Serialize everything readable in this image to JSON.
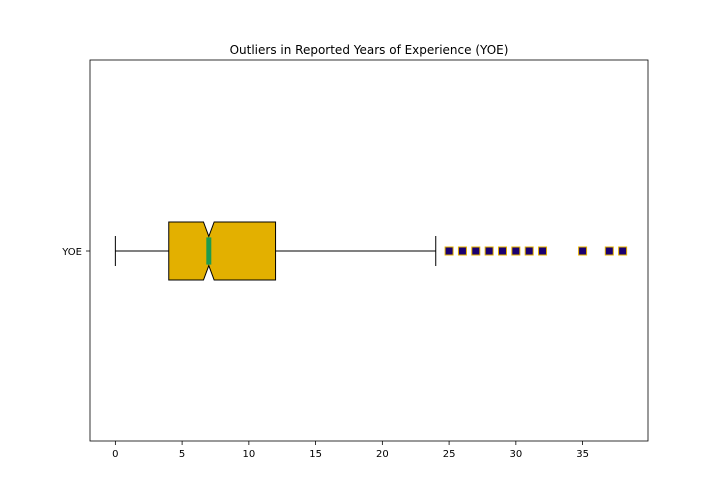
{
  "chart_data": {
    "type": "box",
    "orientation": "horizontal",
    "title": "Outliers in Reported Years of Experience (YOE)",
    "xlabel": "",
    "ylabel": "",
    "xlim": [
      -1.9,
      39.9
    ],
    "x_ticks": [
      0,
      5,
      10,
      15,
      20,
      25,
      30,
      35
    ],
    "grid": false,
    "categories": [
      "YOE"
    ],
    "box": {
      "name": "YOE",
      "whisker_low": 0,
      "q1": 4,
      "median": 7,
      "q3": 12,
      "whisker_high": 24,
      "notch_low": 6.6,
      "notch_high": 7.4,
      "notched": true
    },
    "outliers": [
      25,
      26,
      27,
      28,
      29,
      30,
      31,
      32,
      35,
      37,
      38
    ],
    "colors": {
      "box_fill": "#e3b000",
      "median": "#1e9b4e",
      "outlier_fill": "#1a0070",
      "outlier_edge": "#e3b000"
    }
  }
}
